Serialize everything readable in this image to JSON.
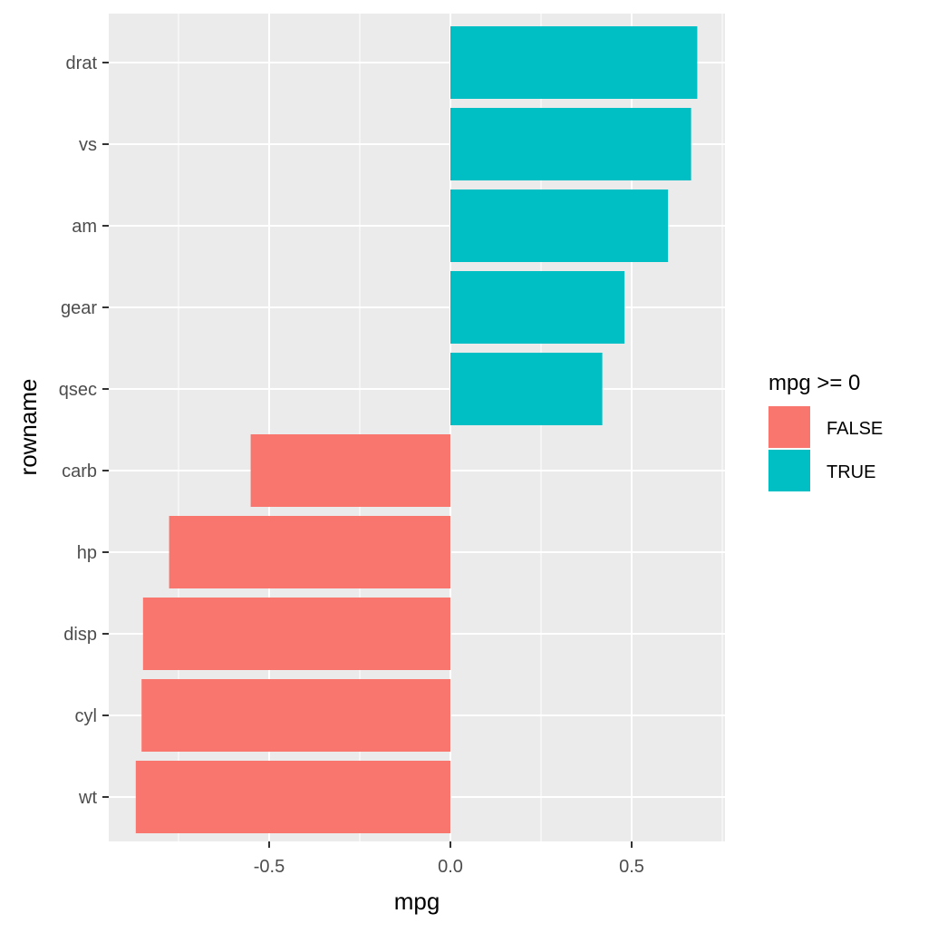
{
  "chart_data": {
    "type": "bar",
    "orientation": "horizontal",
    "xlabel": "mpg",
    "ylabel": "rowname",
    "categories": [
      "drat",
      "vs",
      "am",
      "gear",
      "qsec",
      "carb",
      "hp",
      "disp",
      "cyl",
      "wt"
    ],
    "values": [
      0.681,
      0.664,
      0.6,
      0.48,
      0.419,
      -0.551,
      -0.776,
      -0.848,
      -0.852,
      -0.868
    ],
    "xlim": [
      -0.9425,
      0.7575
    ],
    "xticks": [
      -0.5,
      0.0,
      0.5
    ],
    "xtick_labels": [
      "-0.5",
      "0.0",
      "0.5"
    ],
    "grid": true,
    "legend": {
      "title": "mpg >= 0",
      "position": "right",
      "entries": [
        {
          "label": "FALSE",
          "color": "#F8766D"
        },
        {
          "label": "TRUE",
          "color": "#00BFC4"
        }
      ]
    },
    "panel_background": "#EBEBEB"
  }
}
